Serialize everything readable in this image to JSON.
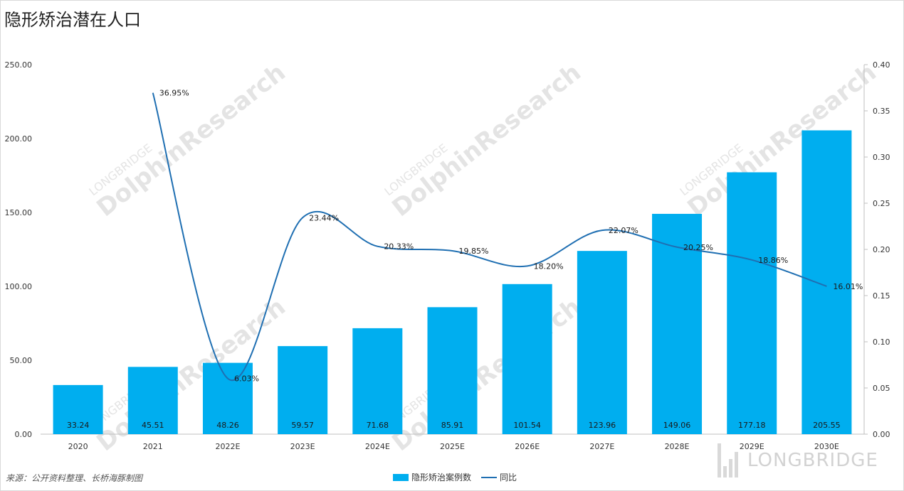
{
  "title": "隐形矫治潜在人口",
  "source": "来源：公开资料整理、长桥海豚制图",
  "brand": "LONGBRIDGE",
  "watermark": {
    "small": "LONGBRIDGE",
    "large": "DolphinResearch"
  },
  "colors": {
    "bar": "#00aeef",
    "line": "#1f6fb2",
    "axis": "#bfbfbf"
  },
  "legend": {
    "bar_label": "隐形矫治案例数",
    "line_label": "同比"
  },
  "chart_data": {
    "type": "bar",
    "categories": [
      "2020",
      "2021",
      "2022E",
      "2023E",
      "2024E",
      "2025E",
      "2026E",
      "2027E",
      "2028E",
      "2029E",
      "2030E"
    ],
    "series": [
      {
        "name": "隐形矫治案例数",
        "type": "bar",
        "axis": "left",
        "values": [
          33.24,
          45.51,
          48.26,
          59.57,
          71.68,
          85.91,
          101.54,
          123.96,
          149.06,
          177.18,
          205.55
        ],
        "labels": [
          "33.24",
          "45.51",
          "48.26",
          "59.57",
          "71.68",
          "85.91",
          "101.54",
          "123.96",
          "149.06",
          "177.18",
          "205.55"
        ]
      },
      {
        "name": "同比",
        "type": "line",
        "axis": "right",
        "values": [
          null,
          0.3695,
          0.0603,
          0.2344,
          0.2033,
          0.1985,
          0.182,
          0.2207,
          0.2025,
          0.1886,
          0.1601
        ],
        "labels": [
          null,
          "36.95%",
          "6.03%",
          "23.44%",
          "20.33%",
          "19.85%",
          "18.20%",
          "22.07%",
          "20.25%",
          "18.86%",
          "16.01%"
        ]
      }
    ],
    "y_left": {
      "range": [
        0,
        250
      ],
      "ticks": [
        "0.00",
        "50.00",
        "100.00",
        "150.00",
        "200.00",
        "250.00"
      ]
    },
    "y_right": {
      "range": [
        0,
        0.4
      ],
      "ticks": [
        "0.00",
        "0.05",
        "0.10",
        "0.15",
        "0.20",
        "0.25",
        "0.30",
        "0.35",
        "0.40"
      ]
    },
    "legend_position": "bottom",
    "grid": false
  }
}
